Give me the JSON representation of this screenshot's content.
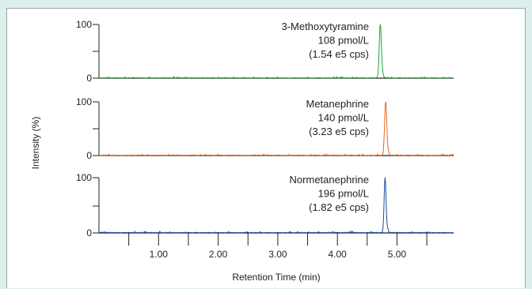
{
  "colors": {
    "background": "#dcefed",
    "baseline": "#222222",
    "axis": "#222222"
  },
  "chart_data": {
    "type": "line",
    "xlabel": "Retention Time (min)",
    "ylabel": "Intensity (%)",
    "xlim": [
      0,
      5.95
    ],
    "ylim": [
      0,
      100
    ],
    "x_ticks": [
      0.5,
      1.0,
      1.5,
      2.0,
      2.5,
      3.0,
      3.5,
      4.0,
      4.5,
      5.0,
      5.5
    ],
    "x_tick_labels": [
      {
        "value": 1.0,
        "label": "1.00"
      },
      {
        "value": 2.0,
        "label": "2.00"
      },
      {
        "value": 3.0,
        "label": "3.00"
      },
      {
        "value": 4.0,
        "label": "4.00"
      },
      {
        "value": 5.0,
        "label": "5.00"
      }
    ],
    "y_tick_labels": [
      "0",
      "100"
    ],
    "grid": false,
    "panels": [
      {
        "annotation": [
          "3-Methoxytyramine",
          "108 pmol/L",
          "(1.54 e5 cps)"
        ],
        "color": "#1aa33b",
        "peak_time": 4.72,
        "peak_width": 0.018,
        "noise_level": 1.6,
        "seed": 3
      },
      {
        "annotation": [
          "Metanephrine",
          "140 pmol/L",
          "(3.23 e5 cps)"
        ],
        "color": "#e46a1f",
        "peak_time": 4.81,
        "peak_width": 0.018,
        "noise_level": 1.8,
        "seed": 11
      },
      {
        "annotation": [
          "Normetanephrine",
          "196 pmol/L",
          "(1.82 e5 cps)"
        ],
        "color": "#1a4f9c",
        "peak_time": 4.8,
        "peak_width": 0.016,
        "noise_level": 1.8,
        "seed": 29
      }
    ]
  }
}
